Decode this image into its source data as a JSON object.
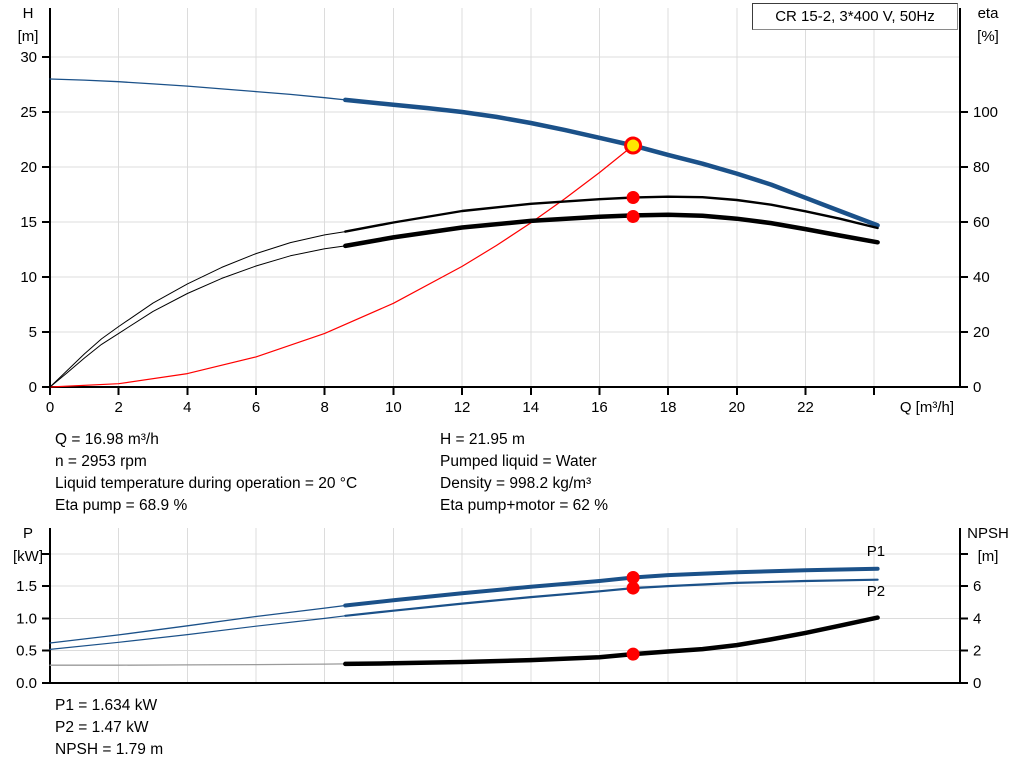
{
  "title_box": {
    "label": "CR 15-2, 3*400 V, 50Hz"
  },
  "annotations": {
    "left": [
      "Q = 16.98 m³/h",
      "n = 2953 rpm",
      "Liquid temperature during operation = 20 °C",
      "Eta pump = 68.9 %"
    ],
    "right": [
      "H = 21.95 m",
      "Pumped liquid = Water",
      "Density = 998.2 kg/m³",
      "Eta pump+motor = 62 %"
    ],
    "bottom": [
      "P1 = 1.634 kW",
      "P2 = 1.47 kW",
      "NPSH = 1.79 m"
    ]
  },
  "colors": {
    "blue": "#1b5189",
    "black": "#000000",
    "red": "#ff0000",
    "gray": "#9a9a9a",
    "grid": "#dcdcdc",
    "axis": "#000000",
    "duty_fill": "#ffe800",
    "curve_label": "#2e66a3"
  },
  "chart_data": [
    {
      "id": "top",
      "type": "line",
      "title": "CR 15-2, 3*400 V, 50Hz",
      "x_axis": {
        "label": "Q [m³/h]",
        "min": 0,
        "max": 26.5,
        "grid": [
          2,
          4,
          6,
          8,
          10,
          12,
          14,
          16,
          18,
          20,
          22,
          24
        ],
        "ticks": [
          {
            "v": 0,
            "label": "0"
          },
          {
            "v": 2,
            "label": "2"
          },
          {
            "v": 4,
            "label": "4"
          },
          {
            "v": 6,
            "label": "6"
          },
          {
            "v": 8,
            "label": "8"
          },
          {
            "v": 10,
            "label": "10"
          },
          {
            "v": 12,
            "label": "12"
          },
          {
            "v": 14,
            "label": "14"
          },
          {
            "v": 16,
            "label": "16"
          },
          {
            "v": 18,
            "label": "18"
          },
          {
            "v": 20,
            "label": "20"
          },
          {
            "v": 22,
            "label": "22"
          },
          {
            "v": 24,
            "label": ""
          }
        ]
      },
      "left_axis": {
        "title_lines": [
          "H",
          "[m]"
        ],
        "min": 0,
        "max": 34.45,
        "ticks": [
          {
            "v": 0,
            "label": "0"
          },
          {
            "v": 5,
            "label": "5"
          },
          {
            "v": 10,
            "label": "10"
          },
          {
            "v": 15,
            "label": "15"
          },
          {
            "v": 20,
            "label": "20"
          },
          {
            "v": 25,
            "label": "25"
          },
          {
            "v": 30,
            "label": "30"
          }
        ]
      },
      "right_axis": {
        "title_lines": [
          "eta",
          "[%]"
        ],
        "min": 0,
        "max": 137.8,
        "ticks": [
          {
            "v": 0,
            "label": "0"
          },
          {
            "v": 20,
            "label": "20"
          },
          {
            "v": 40,
            "label": "40"
          },
          {
            "v": 60,
            "label": "60"
          },
          {
            "v": 80,
            "label": "80"
          },
          {
            "v": 100,
            "label": "100"
          }
        ]
      },
      "series": [
        {
          "name": "head-thin",
          "axis": "left",
          "color": "blue",
          "width": 1.3,
          "points": [
            [
              0,
              28.0
            ],
            [
              1,
              27.9
            ],
            [
              2,
              27.75
            ],
            [
              3,
              27.55
            ],
            [
              4,
              27.35
            ],
            [
              5,
              27.1
            ],
            [
              6,
              26.85
            ],
            [
              7,
              26.6
            ],
            [
              8,
              26.3
            ],
            [
              8.6,
              26.1
            ]
          ]
        },
        {
          "name": "head",
          "axis": "left",
          "color": "blue",
          "width": 4.5,
          "points": [
            [
              8.6,
              26.1
            ],
            [
              10,
              25.65
            ],
            [
              11,
              25.35
            ],
            [
              12,
              25.0
            ],
            [
              13,
              24.55
            ],
            [
              14,
              24.0
            ],
            [
              15,
              23.35
            ],
            [
              16,
              22.65
            ],
            [
              16.98,
              21.95
            ],
            [
              18,
              21.1
            ],
            [
              19,
              20.3
            ],
            [
              20,
              19.4
            ],
            [
              21,
              18.4
            ],
            [
              22,
              17.2
            ],
            [
              23,
              16.0
            ],
            [
              24.1,
              14.7
            ]
          ]
        },
        {
          "name": "system-curve",
          "axis": "left",
          "color": "red",
          "width": 1.2,
          "points": [
            [
              0,
              0
            ],
            [
              2,
              0.3
            ],
            [
              4,
              1.22
            ],
            [
              6,
              2.74
            ],
            [
              8,
              4.87
            ],
            [
              10,
              7.61
            ],
            [
              12,
              10.96
            ],
            [
              13,
              12.86
            ],
            [
              14,
              14.92
            ],
            [
              15,
              17.13
            ],
            [
              16,
              19.49
            ],
            [
              16.98,
              21.95
            ]
          ]
        },
        {
          "name": "eta-pump-thin",
          "axis": "right",
          "color": "black",
          "width": 1,
          "points": [
            [
              0,
              0
            ],
            [
              0.5,
              6
            ],
            [
              1,
              12
            ],
            [
              1.5,
              17.5
            ],
            [
              2,
              22
            ],
            [
              3,
              30.5
            ],
            [
              4,
              37.5
            ],
            [
              5,
              43.5
            ],
            [
              6,
              48.5
            ],
            [
              7,
              52.5
            ],
            [
              8,
              55.3
            ],
            [
              8.6,
              56.5
            ]
          ]
        },
        {
          "name": "eta-pump",
          "axis": "right",
          "color": "black",
          "width": 2.4,
          "points": [
            [
              8.6,
              56.5
            ],
            [
              10,
              59.8
            ],
            [
              12,
              64
            ],
            [
              14,
              66.6
            ],
            [
              16,
              68.3
            ],
            [
              17,
              68.9
            ],
            [
              18,
              69.2
            ],
            [
              19,
              69.0
            ],
            [
              20,
              68.0
            ],
            [
              21,
              66.3
            ],
            [
              22,
              63.9
            ],
            [
              23,
              61.2
            ],
            [
              24.1,
              57.8
            ]
          ]
        },
        {
          "name": "eta-pump-motor-thin",
          "axis": "right",
          "color": "black",
          "width": 1,
          "points": [
            [
              0,
              0
            ],
            [
              0.5,
              5.2
            ],
            [
              1,
              10.5
            ],
            [
              1.5,
              15.5
            ],
            [
              2,
              19.5
            ],
            [
              3,
              27.5
            ],
            [
              4,
              34
            ],
            [
              5,
              39.5
            ],
            [
              6,
              44
            ],
            [
              7,
              47.7
            ],
            [
              8,
              50.3
            ],
            [
              8.6,
              51.3
            ]
          ]
        },
        {
          "name": "eta-pump-motor",
          "axis": "right",
          "color": "black",
          "width": 4.5,
          "points": [
            [
              8.6,
              51.3
            ],
            [
              10,
              54.4
            ],
            [
              12,
              58
            ],
            [
              14,
              60.4
            ],
            [
              16,
              61.9
            ],
            [
              17,
              62.4
            ],
            [
              18,
              62.6
            ],
            [
              19,
              62.3
            ],
            [
              20,
              61.2
            ],
            [
              21,
              59.6
            ],
            [
              22,
              57.4
            ],
            [
              23,
              55.1
            ],
            [
              24.1,
              52.6
            ]
          ]
        }
      ],
      "markers": [
        {
          "x": 16.98,
          "y": 21.95,
          "axis": "left",
          "kind": "duty"
        },
        {
          "x": 16.98,
          "y": 68.9,
          "axis": "right",
          "kind": "dot"
        },
        {
          "x": 16.98,
          "y": 62.0,
          "axis": "right",
          "kind": "dot"
        }
      ],
      "curve_labels": []
    },
    {
      "id": "bottom",
      "type": "line",
      "title": "",
      "x_axis": {
        "label": "",
        "min": 0,
        "max": 26.5,
        "grid": [
          2,
          4,
          6,
          8,
          10,
          12,
          14,
          16,
          18,
          20,
          22,
          24
        ],
        "ticks": []
      },
      "left_axis": {
        "title_lines": [
          "P",
          "[kW]"
        ],
        "min": 0,
        "max": 2.4,
        "ticks": [
          {
            "v": 0,
            "label": "0.0"
          },
          {
            "v": 0.5,
            "label": "0.5"
          },
          {
            "v": 1,
            "label": "1.0"
          },
          {
            "v": 1.5,
            "label": "1.5"
          },
          {
            "v": 2,
            "label": ""
          }
        ]
      },
      "right_axis": {
        "title_lines": [
          "NPSH",
          "[m]"
        ],
        "min": 0,
        "max": 9.6,
        "ticks": [
          {
            "v": 0,
            "label": "0"
          },
          {
            "v": 2,
            "label": "2"
          },
          {
            "v": 4,
            "label": "4"
          },
          {
            "v": 6,
            "label": "6"
          },
          {
            "v": 8,
            "label": ""
          }
        ]
      },
      "series": [
        {
          "name": "p1-thin",
          "axis": "left",
          "color": "blue",
          "width": 1.3,
          "points": [
            [
              0,
              0.62
            ],
            [
              2,
              0.745
            ],
            [
              4,
              0.885
            ],
            [
              6,
              1.03
            ],
            [
              8,
              1.16
            ],
            [
              8.6,
              1.2
            ]
          ]
        },
        {
          "name": "p1",
          "axis": "left",
          "color": "blue",
          "width": 4,
          "points": [
            [
              8.6,
              1.2
            ],
            [
              10,
              1.28
            ],
            [
              12,
              1.39
            ],
            [
              14,
              1.49
            ],
            [
              16,
              1.58
            ],
            [
              16.98,
              1.634
            ],
            [
              18,
              1.67
            ],
            [
              20,
              1.715
            ],
            [
              22,
              1.745
            ],
            [
              24.1,
              1.77
            ]
          ]
        },
        {
          "name": "p2-thin",
          "axis": "left",
          "color": "blue",
          "width": 1.2,
          "points": [
            [
              0,
              0.52
            ],
            [
              2,
              0.63
            ],
            [
              4,
              0.75
            ],
            [
              6,
              0.88
            ],
            [
              8,
              1.0
            ],
            [
              8.6,
              1.04
            ]
          ]
        },
        {
          "name": "p2",
          "axis": "left",
          "color": "blue",
          "width": 2.2,
          "points": [
            [
              8.6,
              1.04
            ],
            [
              10,
              1.12
            ],
            [
              12,
              1.23
            ],
            [
              14,
              1.33
            ],
            [
              16,
              1.42
            ],
            [
              16.98,
              1.47
            ],
            [
              18,
              1.5
            ],
            [
              20,
              1.55
            ],
            [
              22,
              1.58
            ],
            [
              24.1,
              1.6
            ]
          ]
        },
        {
          "name": "npsh-thin",
          "axis": "right",
          "color": "gray",
          "width": 1.3,
          "points": [
            [
              0,
              1.1
            ],
            [
              2,
              1.1
            ],
            [
              4,
              1.12
            ],
            [
              6,
              1.14
            ],
            [
              8,
              1.17
            ],
            [
              8.6,
              1.18
            ]
          ]
        },
        {
          "name": "npsh",
          "axis": "right",
          "color": "black",
          "width": 4.5,
          "points": [
            [
              8.6,
              1.18
            ],
            [
              10,
              1.22
            ],
            [
              12,
              1.3
            ],
            [
              14,
              1.42
            ],
            [
              16,
              1.6
            ],
            [
              16.98,
              1.79
            ],
            [
              18,
              1.95
            ],
            [
              19,
              2.1
            ],
            [
              20,
              2.35
            ],
            [
              21,
              2.7
            ],
            [
              22,
              3.1
            ],
            [
              23,
              3.55
            ],
            [
              24.1,
              4.05
            ]
          ]
        }
      ],
      "markers": [
        {
          "x": 16.98,
          "y": 1.634,
          "axis": "left",
          "kind": "dot"
        },
        {
          "x": 16.98,
          "y": 1.47,
          "axis": "left",
          "kind": "dot"
        },
        {
          "x": 16.98,
          "y": 1.79,
          "axis": "right",
          "kind": "dot"
        }
      ],
      "curve_labels": [
        {
          "text": "P1",
          "x": 24.05,
          "y": 1.97,
          "axis": "left"
        },
        {
          "text": "P2",
          "x": 24.05,
          "y": 1.35,
          "axis": "left"
        }
      ]
    }
  ]
}
